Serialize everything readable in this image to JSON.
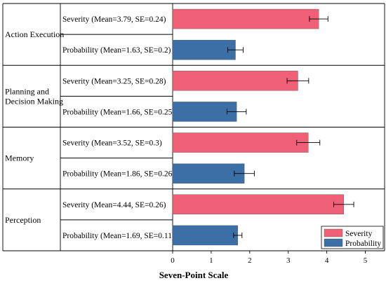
{
  "chart_data": {
    "type": "bar",
    "orientation": "horizontal",
    "xlabel": "Seven-Point  Scale",
    "xlim": [
      0,
      5.5
    ],
    "xticks": [
      0,
      1,
      2,
      3,
      4,
      5
    ],
    "legend_position": "bottom-right",
    "series": [
      {
        "name": "Severity",
        "color": "#EF6077"
      },
      {
        "name": "Probability",
        "color": "#3B6FA6"
      }
    ],
    "groups": [
      {
        "name": "Action Execution",
        "rows": [
          {
            "series": "Severity",
            "label": "Severity (Mean=3.79, SE=0.24)",
            "value": 3.79,
            "se": 0.24
          },
          {
            "series": "Probability",
            "label": "Probability (Mean=1.63, SE=0.2)",
            "value": 1.63,
            "se": 0.2
          }
        ]
      },
      {
        "name": "Planning and\nDecision Making",
        "rows": [
          {
            "series": "Severity",
            "label": "Severity (Mean=3.25, SE=0.28)",
            "value": 3.25,
            "se": 0.28
          },
          {
            "series": "Probability",
            "label": "Probability (Mean=1.66, SE=0.25)",
            "value": 1.66,
            "se": 0.25
          }
        ]
      },
      {
        "name": "Memory",
        "rows": [
          {
            "series": "Severity",
            "label": "Severity (Mean=3.52, SE=0.3)",
            "value": 3.52,
            "se": 0.3
          },
          {
            "series": "Probability",
            "label": "Probability (Mean=1.86, SE=0.26)",
            "value": 1.86,
            "se": 0.26
          }
        ]
      },
      {
        "name": "Perception",
        "rows": [
          {
            "series": "Severity",
            "label": "Severity (Mean=4.44, SE=0.26)",
            "value": 4.44,
            "se": 0.26
          },
          {
            "series": "Probability",
            "label": "Probability (Mean=1.69, SE=0.11)",
            "value": 1.69,
            "se": 0.11
          }
        ]
      }
    ]
  }
}
